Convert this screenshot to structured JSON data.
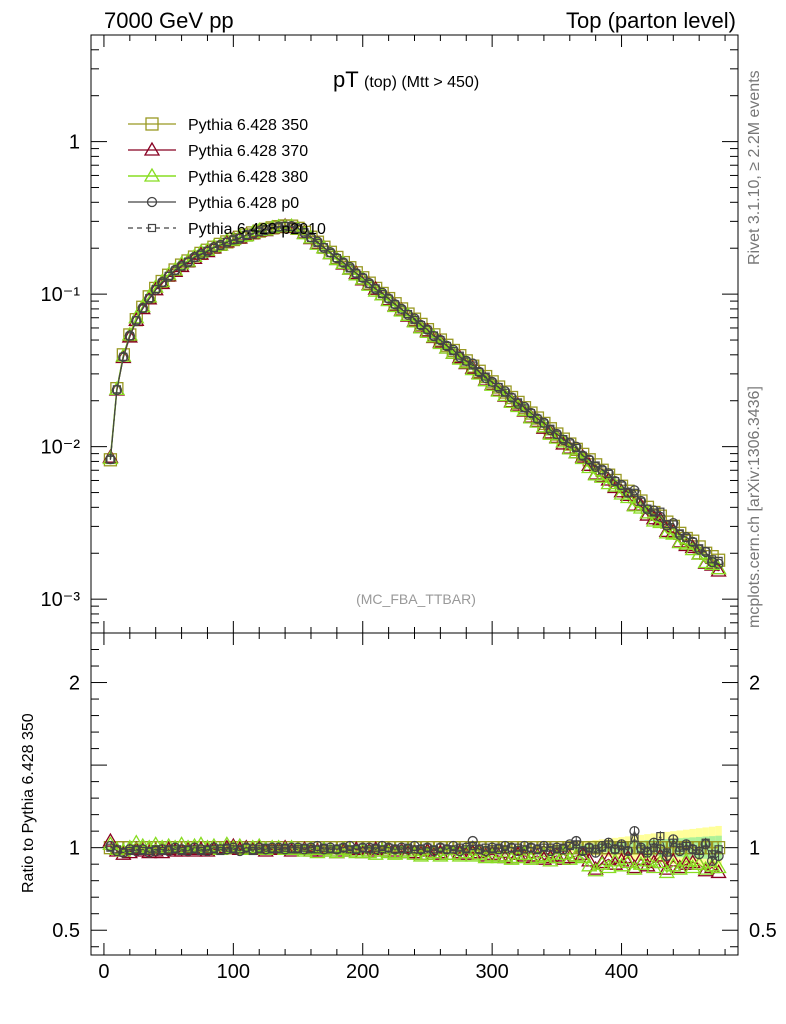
{
  "header": {
    "left": "7000 GeV pp",
    "right": "Top (parton level)"
  },
  "side_labels": {
    "rivet": "Rivet 3.1.10, ≥ 2.2M events",
    "mcplots": "mcplots.cern.ch [arXiv:1306.3436]"
  },
  "chart_data": {
    "type": "line",
    "title": "pT (top) (Mtt > 450)",
    "title_main": "pT",
    "title_sub": "(top) (Mtt > 450)",
    "watermark": "(MC_FBA_TTBAR)",
    "xlabel": "",
    "ylabel": "",
    "ratio_ylabel": "Ratio to Pythia 6.428 350",
    "xlim": [
      -10,
      490
    ],
    "ylim": [
      0.0006,
      5
    ],
    "ratio_ylim": [
      0.35,
      2.3
    ],
    "yscale": "log",
    "x_ticks": [
      "0",
      "100",
      "200",
      "300",
      "400"
    ],
    "y_ticks": [
      "1",
      "10⁻¹",
      "10⁻²",
      "10⁻³"
    ],
    "ratio_ticks": [
      "0.5",
      "1",
      "2"
    ],
    "legend_position": "top-left",
    "series": [
      {
        "name": "Pythia 6.428 350",
        "color": "#999922",
        "marker": "square-open",
        "line": "solid"
      },
      {
        "name": "Pythia 6.428 370",
        "color": "#880022",
        "marker": "triangle-open",
        "line": "solid"
      },
      {
        "name": "Pythia 6.428 380",
        "color": "#88dd22",
        "marker": "triangle-open",
        "line": "solid"
      },
      {
        "name": "Pythia 6.428 p0",
        "color": "#444444",
        "marker": "circle-open",
        "line": "solid"
      },
      {
        "name": "Pythia 6.428 p2010",
        "color": "#444444",
        "marker": "square-open-small",
        "line": "dashed"
      }
    ],
    "x": [
      5,
      10,
      15,
      20,
      25,
      30,
      35,
      40,
      45,
      50,
      55,
      60,
      65,
      70,
      75,
      80,
      85,
      90,
      95,
      100,
      105,
      110,
      115,
      120,
      125,
      130,
      135,
      140,
      145,
      150,
      155,
      160,
      165,
      170,
      175,
      180,
      185,
      190,
      195,
      200,
      205,
      210,
      215,
      220,
      225,
      230,
      235,
      240,
      245,
      250,
      255,
      260,
      265,
      270,
      275,
      280,
      285,
      290,
      295,
      300,
      305,
      310,
      315,
      320,
      325,
      330,
      335,
      340,
      345,
      350,
      355,
      360,
      365,
      370,
      375,
      380,
      385,
      390,
      395,
      400,
      405,
      410,
      415,
      420,
      425,
      430,
      435,
      440,
      445,
      450,
      455,
      460,
      465,
      470,
      475
    ],
    "reference_values": [
      0.0082,
      0.024,
      0.04,
      0.054,
      0.068,
      0.082,
      0.096,
      0.109,
      0.121,
      0.133,
      0.144,
      0.155,
      0.165,
      0.175,
      0.185,
      0.194,
      0.203,
      0.212,
      0.22,
      0.228,
      0.236,
      0.244,
      0.252,
      0.259,
      0.266,
      0.272,
      0.277,
      0.28,
      0.279,
      0.27,
      0.254,
      0.236,
      0.219,
      0.203,
      0.188,
      0.174,
      0.161,
      0.149,
      0.138,
      0.128,
      0.118,
      0.109,
      0.101,
      0.0935,
      0.0865,
      0.08,
      0.074,
      0.0685,
      0.0633,
      0.0585,
      0.0541,
      0.05,
      0.0462,
      0.0427,
      0.0395,
      0.0365,
      0.0337,
      0.0312,
      0.0288,
      0.0266,
      0.0246,
      0.0228,
      0.021,
      0.0195,
      0.018,
      0.0166,
      0.0154,
      0.0142,
      0.0131,
      0.0121,
      0.0112,
      0.0104,
      0.0096,
      0.0089,
      0.0082,
      0.0076,
      0.007,
      0.0065,
      0.006,
      0.0055,
      0.0051,
      0.0047,
      0.0044,
      0.004,
      0.0037,
      0.0035,
      0.0032,
      0.003,
      0.0027,
      0.0025,
      0.0024,
      0.0022,
      0.002,
      0.0019,
      0.0018
    ],
    "ratio_ref": [
      1.0,
      1.0,
      1.0,
      1.0,
      1.0,
      1.0,
      1.0,
      1.0,
      1.0,
      1.0,
      1.0,
      1.0,
      1.0,
      1.0,
      1.0,
      1.0,
      1.0,
      1.0,
      1.0,
      1.0,
      1.0,
      1.0,
      1.0,
      1.0,
      1.0,
      1.0,
      1.0,
      1.0,
      1.0,
      1.0,
      1.0,
      1.0,
      1.0,
      1.0,
      1.0,
      1.0,
      1.0,
      1.0,
      1.0,
      1.0,
      1.0,
      1.0,
      1.0,
      1.0,
      1.0,
      1.0,
      1.0,
      1.0,
      1.0,
      1.0,
      1.0,
      1.0,
      1.0,
      1.0,
      1.0,
      1.0,
      1.0,
      1.0,
      1.0,
      1.0,
      1.0,
      1.0,
      1.0,
      1.0,
      1.0,
      1.0,
      1.0,
      1.0,
      1.0,
      1.0,
      1.0,
      1.0,
      1.0,
      1.0,
      1.0,
      1.0,
      1.0,
      1.0,
      1.0,
      1.0,
      1.0,
      1.0,
      1.0,
      1.0,
      1.0,
      1.0,
      1.0,
      1.0,
      1.0,
      1.0,
      1.0,
      1.0,
      1.0,
      1.0,
      1.0
    ],
    "ratio_370": [
      1.04,
      0.98,
      0.96,
      0.97,
      0.99,
      0.98,
      0.97,
      0.98,
      0.97,
      0.99,
      0.98,
      0.98,
      0.99,
      0.98,
      0.99,
      0.98,
      0.99,
      0.99,
      1.0,
      1.01,
      0.99,
      1.0,
      0.99,
      1.0,
      0.98,
      0.99,
      0.99,
      1.0,
      0.98,
      0.99,
      0.99,
      0.98,
      0.98,
      0.99,
      0.98,
      0.97,
      0.98,
      0.98,
      0.99,
      0.97,
      0.98,
      0.99,
      0.98,
      0.98,
      0.97,
      0.98,
      0.97,
      0.97,
      0.96,
      0.98,
      0.96,
      0.97,
      0.96,
      0.96,
      0.97,
      0.96,
      0.97,
      0.97,
      0.95,
      0.96,
      0.95,
      0.94,
      0.94,
      0.96,
      0.95,
      0.94,
      0.95,
      0.93,
      0.94,
      0.95,
      0.93,
      0.94,
      0.95,
      0.96,
      0.92,
      0.87,
      0.91,
      0.93,
      0.9,
      0.92,
      0.94,
      0.88,
      0.93,
      0.89,
      0.91,
      0.95,
      0.87,
      0.92,
      0.88,
      0.9,
      0.91,
      0.9,
      0.86,
      0.88,
      0.85
    ],
    "ratio_380": [
      1.02,
      0.99,
      0.98,
      1.0,
      1.03,
      1.01,
      1.0,
      1.02,
      1.0,
      1.01,
      1.0,
      1.02,
      1.0,
      1.01,
      1.02,
      1.0,
      1.01,
      0.99,
      1.02,
      1.0,
      1.01,
      0.99,
      1.0,
      1.01,
      0.99,
      1.0,
      1.0,
      0.99,
      1.0,
      0.99,
      0.98,
      0.99,
      0.97,
      0.99,
      0.98,
      0.97,
      0.99,
      0.98,
      0.97,
      0.98,
      0.97,
      0.96,
      0.98,
      0.97,
      0.96,
      0.97,
      0.98,
      0.96,
      0.95,
      0.96,
      0.97,
      0.95,
      0.96,
      0.96,
      0.95,
      0.97,
      0.95,
      0.96,
      0.94,
      0.95,
      0.94,
      0.95,
      0.93,
      0.94,
      0.96,
      0.93,
      0.94,
      0.95,
      0.92,
      0.94,
      0.96,
      0.93,
      0.95,
      0.94,
      0.89,
      0.86,
      0.9,
      0.88,
      0.92,
      0.89,
      0.91,
      0.87,
      0.9,
      0.92,
      0.88,
      0.91,
      0.85,
      0.89,
      0.87,
      0.92,
      0.88,
      0.9,
      0.87,
      0.89,
      0.88
    ],
    "ratio_p0": [
      1.01,
      0.98,
      0.97,
      0.99,
      0.98,
      0.99,
      0.97,
      0.98,
      0.99,
      0.98,
      1.0,
      0.99,
      0.98,
      1.0,
      0.99,
      0.98,
      1.0,
      0.99,
      0.99,
      1.0,
      0.98,
      1.0,
      0.99,
      1.0,
      0.99,
      1.0,
      1.0,
      0.99,
      1.0,
      1.0,
      0.99,
      1.0,
      1.01,
      0.99,
      1.0,
      0.99,
      1.0,
      1.01,
      0.99,
      1.0,
      1.0,
      0.99,
      1.01,
      1.0,
      0.99,
      1.0,
      0.99,
      1.01,
      0.99,
      1.0,
      0.98,
      1.0,
      0.99,
      1.01,
      0.98,
      1.0,
      1.04,
      0.99,
      0.98,
      1.0,
      0.99,
      1.01,
      1.0,
      0.98,
      1.01,
      1.0,
      0.99,
      1.01,
      0.98,
      1.0,
      0.99,
      1.02,
      1.04,
      0.98,
      1.0,
      0.97,
      1.01,
      1.03,
      0.99,
      1.02,
      0.98,
      1.1,
      1.0,
      0.97,
      1.03,
      0.99,
      0.95,
      1.05,
      0.98,
      1.02,
      0.99,
      0.96,
      1.02,
      0.92,
      0.95
    ],
    "ratio_p2010": [
      1.0,
      0.99,
      0.97,
      0.98,
      0.99,
      0.98,
      0.98,
      0.99,
      0.98,
      0.99,
      0.99,
      0.98,
      0.99,
      0.99,
      0.98,
      0.99,
      0.99,
      0.98,
      1.0,
      0.99,
      0.99,
      1.0,
      0.98,
      0.99,
      1.0,
      0.99,
      0.99,
      1.0,
      0.99,
      0.99,
      1.0,
      0.99,
      0.99,
      1.0,
      0.99,
      0.99,
      1.0,
      0.99,
      0.99,
      1.0,
      0.99,
      1.0,
      0.99,
      1.0,
      0.99,
      0.99,
      1.0,
      0.99,
      0.99,
      1.0,
      0.99,
      1.0,
      0.99,
      0.99,
      1.0,
      0.99,
      1.01,
      0.99,
      1.0,
      0.99,
      1.0,
      0.99,
      1.0,
      1.0,
      0.99,
      1.0,
      0.99,
      1.0,
      1.0,
      0.99,
      1.0,
      1.01,
      1.02,
      0.98,
      1.0,
      0.99,
      1.0,
      1.02,
      0.99,
      1.01,
      0.98,
      1.06,
      0.99,
      0.98,
      1.0,
      1.07,
      0.97,
      1.03,
      1.0,
      1.01,
      0.99,
      0.98,
      1.03,
      0.96,
      0.99
    ]
  }
}
